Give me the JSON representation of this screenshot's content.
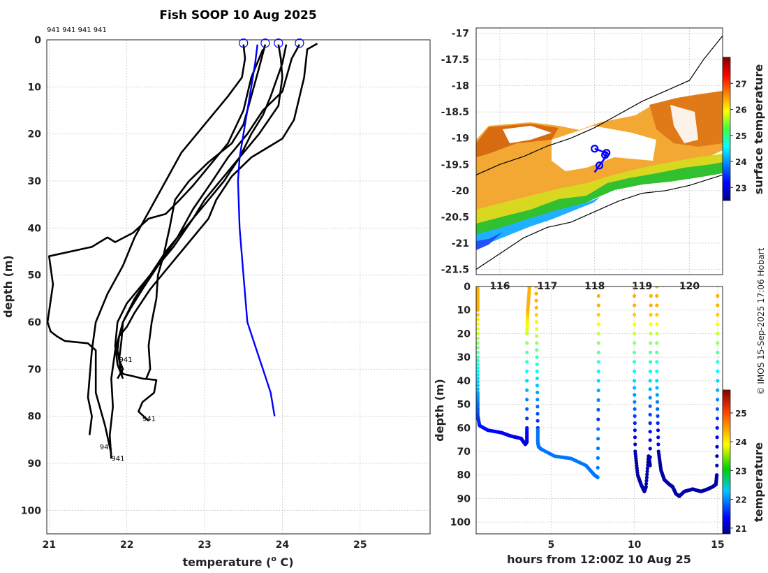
{
  "chart_data": [
    {
      "type": "line",
      "title": "Fish SOOP 10 Aug 2025",
      "xlabel": "temperature (",
      "xlabel_unit": "o",
      "xlabel_tail": " C)",
      "ylabel": "depth (m)",
      "xlim": [
        20.97,
        25.9
      ],
      "ylim": [
        105,
        0
      ],
      "xticks": [
        "21",
        "22",
        "23",
        "24",
        "25"
      ],
      "yticks": [
        "0",
        "10",
        "20",
        "30",
        "40",
        "50",
        "60",
        "70",
        "80",
        "90",
        "100"
      ],
      "top_annotation": "941 941 941 941",
      "profile_labels": [
        {
          "text": "941",
          "temp": 21.9,
          "depth": 68.5
        },
        {
          "text": "941",
          "temp": 22.2,
          "depth": 81
        },
        {
          "text": "941",
          "temp": 21.65,
          "depth": 87
        },
        {
          "text": "941",
          "temp": 21.8,
          "depth": 89.5
        }
      ],
      "surface_markers": [
        23.5,
        23.78,
        23.95,
        24.22
      ],
      "series": [
        {
          "name": "profile-1",
          "color": "#000000",
          "temp": [
            24.45,
            24.32,
            24.28,
            24.15,
            24.0,
            23.6,
            23.35,
            23.15,
            23.05,
            22.8,
            22.55,
            22.3,
            22.1,
            22.0,
            21.9,
            21.88,
            21.9,
            21.92,
            21.95,
            22.08,
            22.2,
            22.38,
            22.35,
            22.2,
            22.15,
            22.28
          ],
          "depth": [
            0.8,
            2,
            8,
            17,
            21,
            25,
            29,
            34,
            38,
            43,
            48,
            53,
            58,
            61,
            63,
            66,
            68,
            70,
            71,
            71.5,
            72,
            72.3,
            75,
            77,
            79,
            81
          ]
        },
        {
          "name": "profile-2",
          "color": "#000000",
          "temp": [
            24.22,
            24.12,
            24.0,
            23.75,
            23.55,
            23.3,
            23.1,
            22.85,
            22.65,
            22.4,
            22.2,
            22.05,
            21.95,
            21.93,
            21.9,
            21.95,
            21.88
          ],
          "depth": [
            1,
            4,
            11,
            15,
            20,
            25,
            30,
            36,
            42,
            48,
            53,
            57,
            60,
            64,
            68,
            70,
            72
          ]
        },
        {
          "name": "profile-3",
          "color": "#000000",
          "temp": [
            23.95,
            23.98,
            24.0,
            23.95,
            23.7,
            23.5,
            23.25,
            23.0,
            22.85,
            22.6,
            22.4,
            22.2,
            22.0,
            21.88,
            21.85,
            21.88,
            21.95
          ],
          "depth": [
            1,
            4,
            8,
            14,
            20,
            24,
            29,
            34,
            38,
            44,
            48,
            52,
            56,
            60,
            65,
            69,
            72
          ]
        },
        {
          "name": "profile-4",
          "color": "#000000",
          "temp": [
            23.78,
            23.7,
            23.6,
            23.5,
            23.35,
            23.05,
            22.8,
            22.62,
            22.55,
            22.47,
            22.4,
            22.38,
            22.32,
            22.28,
            22.3,
            22.25
          ],
          "depth": [
            1,
            6,
            12,
            18,
            22,
            26,
            30,
            34,
            40,
            46,
            50,
            55,
            60,
            65,
            70,
            72
          ]
        },
        {
          "name": "profile-5",
          "color": "#000000",
          "temp": [
            23.5,
            23.52,
            23.48,
            23.3,
            23.0,
            22.7,
            22.5,
            22.3,
            22.1,
            21.95,
            21.75,
            21.6,
            21.55,
            21.52,
            21.5,
            21.55,
            21.52
          ],
          "depth": [
            1,
            4,
            8,
            12,
            18,
            24,
            30,
            36,
            42,
            48,
            54,
            60,
            66,
            72,
            76,
            80,
            84
          ]
        },
        {
          "name": "profile-6",
          "color": "#000000",
          "temp": [
            23.75,
            23.6,
            23.5,
            23.3,
            23.05,
            22.85,
            22.68,
            22.5,
            22.28,
            22.08,
            21.85,
            21.75,
            21.65,
            21.55,
            21.0,
            21.05,
            20.98,
            21.02,
            21.1,
            21.2,
            21.5,
            21.6,
            21.6,
            21.72,
            21.8
          ],
          "depth": [
            2,
            8,
            15,
            22,
            27,
            31,
            34,
            37,
            38,
            41,
            43,
            42,
            43,
            44,
            46,
            52,
            60,
            62,
            63,
            64,
            64.5,
            66,
            75,
            82,
            88
          ]
        },
        {
          "name": "profile-7",
          "color": "#000000",
          "temp": [
            24.05,
            24.0,
            23.85,
            23.75,
            23.6,
            23.45,
            23.25,
            23.0,
            22.75,
            22.5,
            22.3,
            22.1,
            21.95,
            21.85,
            21.8,
            21.82,
            21.78,
            21.8
          ],
          "depth": [
            1,
            5,
            12,
            16,
            20,
            25,
            30,
            35,
            40,
            45,
            50,
            55,
            60,
            66,
            72,
            78,
            84,
            89
          ]
        },
        {
          "name": "mean",
          "color": "#0000ff",
          "temp": [
            23.68,
            23.65,
            23.6,
            23.55,
            23.5,
            23.45,
            23.43,
            23.45,
            23.5,
            23.55,
            23.65,
            23.75,
            23.85,
            23.9
          ],
          "depth": [
            1,
            5,
            10,
            15,
            20,
            25,
            30,
            40,
            50,
            60,
            65,
            70,
            75,
            80
          ]
        }
      ]
    },
    {
      "type": "heatmap",
      "name": "surface-temperature-map",
      "colorbar_label": "surface temperature",
      "clim": [
        22.5,
        28
      ],
      "xticks": [
        "116",
        "117",
        "118",
        "119",
        "120"
      ],
      "xlim": [
        115.5,
        120.7
      ],
      "ylim": [
        -21.6,
        -16.9
      ],
      "yticks": [
        "-17",
        "-17.5",
        "-18",
        "-18.5",
        "-19",
        "-19.5",
        "-20",
        "-20.5",
        "-21",
        "-21.5"
      ],
      "colorbar_ticks": [
        "23",
        "24",
        "25",
        "26",
        "27"
      ],
      "coastline": [
        {
          "lon": 115.5,
          "lat": -21.5
        },
        {
          "lon": 116.0,
          "lat": -21.2
        },
        {
          "lon": 116.5,
          "lat": -20.9
        },
        {
          "lon": 117.0,
          "lat": -20.7
        },
        {
          "lon": 117.5,
          "lat": -20.6
        },
        {
          "lon": 118.0,
          "lat": -20.4
        },
        {
          "lon": 118.5,
          "lat": -20.2
        },
        {
          "lon": 119.0,
          "lat": -20.05
        },
        {
          "lon": 119.5,
          "lat": -20.0
        },
        {
          "lon": 120.0,
          "lat": -19.9
        },
        {
          "lon": 120.7,
          "lat": -19.7
        }
      ],
      "shelf_contour": [
        {
          "lon": 115.5,
          "lat": -19.7
        },
        {
          "lon": 116.0,
          "lat": -19.5
        },
        {
          "lon": 116.5,
          "lat": -19.35
        },
        {
          "lon": 117.0,
          "lat": -19.15
        },
        {
          "lon": 117.5,
          "lat": -19.0
        },
        {
          "lon": 118.0,
          "lat": -18.8
        },
        {
          "lon": 118.5,
          "lat": -18.55
        },
        {
          "lon": 119.0,
          "lat": -18.3
        },
        {
          "lon": 119.5,
          "lat": -18.1
        },
        {
          "lon": 120.0,
          "lat": -17.9
        },
        {
          "lon": 120.3,
          "lat": -17.5
        },
        {
          "lon": 120.7,
          "lat": -17.05
        }
      ],
      "ship_track": [
        {
          "lon": 118.0,
          "lat": -19.2
        },
        {
          "lon": 118.15,
          "lat": -19.25
        },
        {
          "lon": 118.25,
          "lat": -19.28
        },
        {
          "lon": 118.2,
          "lat": -19.4
        },
        {
          "lon": 118.1,
          "lat": -19.52
        },
        {
          "lon": 118.0,
          "lat": -19.65
        }
      ],
      "stations": [
        {
          "lon": 118.0,
          "lat": -19.2
        },
        {
          "lon": 118.25,
          "lat": -19.28
        },
        {
          "lon": 118.22,
          "lat": -19.32
        },
        {
          "lon": 118.1,
          "lat": -19.52
        }
      ]
    },
    {
      "type": "scatter",
      "name": "depth-time-section",
      "xlabel": "hours from 12:00Z 10 Aug 25",
      "ylabel": "depth (m)",
      "colorbar_label": "temperature",
      "clim": [
        20.8,
        25.8
      ],
      "xlim": [
        0.5,
        15.3
      ],
      "ylim": [
        105,
        0
      ],
      "xticks": [
        "5",
        "10",
        "15"
      ],
      "yticks": [
        "0",
        "10",
        "20",
        "30",
        "40",
        "50",
        "60",
        "70",
        "80",
        "90",
        "100"
      ],
      "colorbar_ticks": [
        "21",
        "22",
        "23",
        "24",
        "25"
      ],
      "casts": [
        {
          "x": [
            0.6,
            0.6,
            0.6,
            0.6,
            0.6,
            0.7,
            1.2,
            2.0,
            2.6,
            3.2,
            3.45,
            3.55,
            3.55,
            3.55,
            3.6,
            3.7,
            3.7
          ],
          "depth": [
            0,
            10,
            30,
            45,
            55,
            59,
            61,
            62,
            63.5,
            64.5,
            67,
            66,
            60,
            20,
            10,
            0.5,
            0
          ]
        },
        {
          "x": [
            4.1,
            4.15,
            4.2,
            4.2,
            4.25,
            4.4,
            5.2,
            6.2,
            7.1,
            7.6,
            7.8,
            7.85,
            7.85
          ],
          "depth": [
            0,
            30,
            60,
            66,
            68,
            69,
            72,
            73,
            76,
            80,
            81,
            40,
            0
          ]
        },
        {
          "x": [
            10.0,
            10.0,
            10.05,
            10.2,
            10.4,
            10.6,
            10.7,
            10.85,
            10.95,
            10.95,
            11.0
          ],
          "depth": [
            0,
            40,
            70,
            80,
            84,
            87,
            85,
            72,
            76,
            40,
            0
          ]
        },
        {
          "x": [
            11.35,
            11.35,
            11.45,
            11.6,
            11.8,
            12.1,
            12.3,
            12.5,
            12.7,
            13.0,
            13.5,
            14.0,
            14.4,
            14.7,
            14.9,
            14.95,
            15.0,
            15.0
          ],
          "depth": [
            0,
            40,
            70,
            78,
            82,
            84,
            85,
            88,
            89,
            87,
            86,
            87,
            86,
            85,
            84,
            80,
            40,
            0
          ]
        }
      ]
    }
  ],
  "watermark": "© IMOS 15-Sep-2025 17:06 Hobart"
}
